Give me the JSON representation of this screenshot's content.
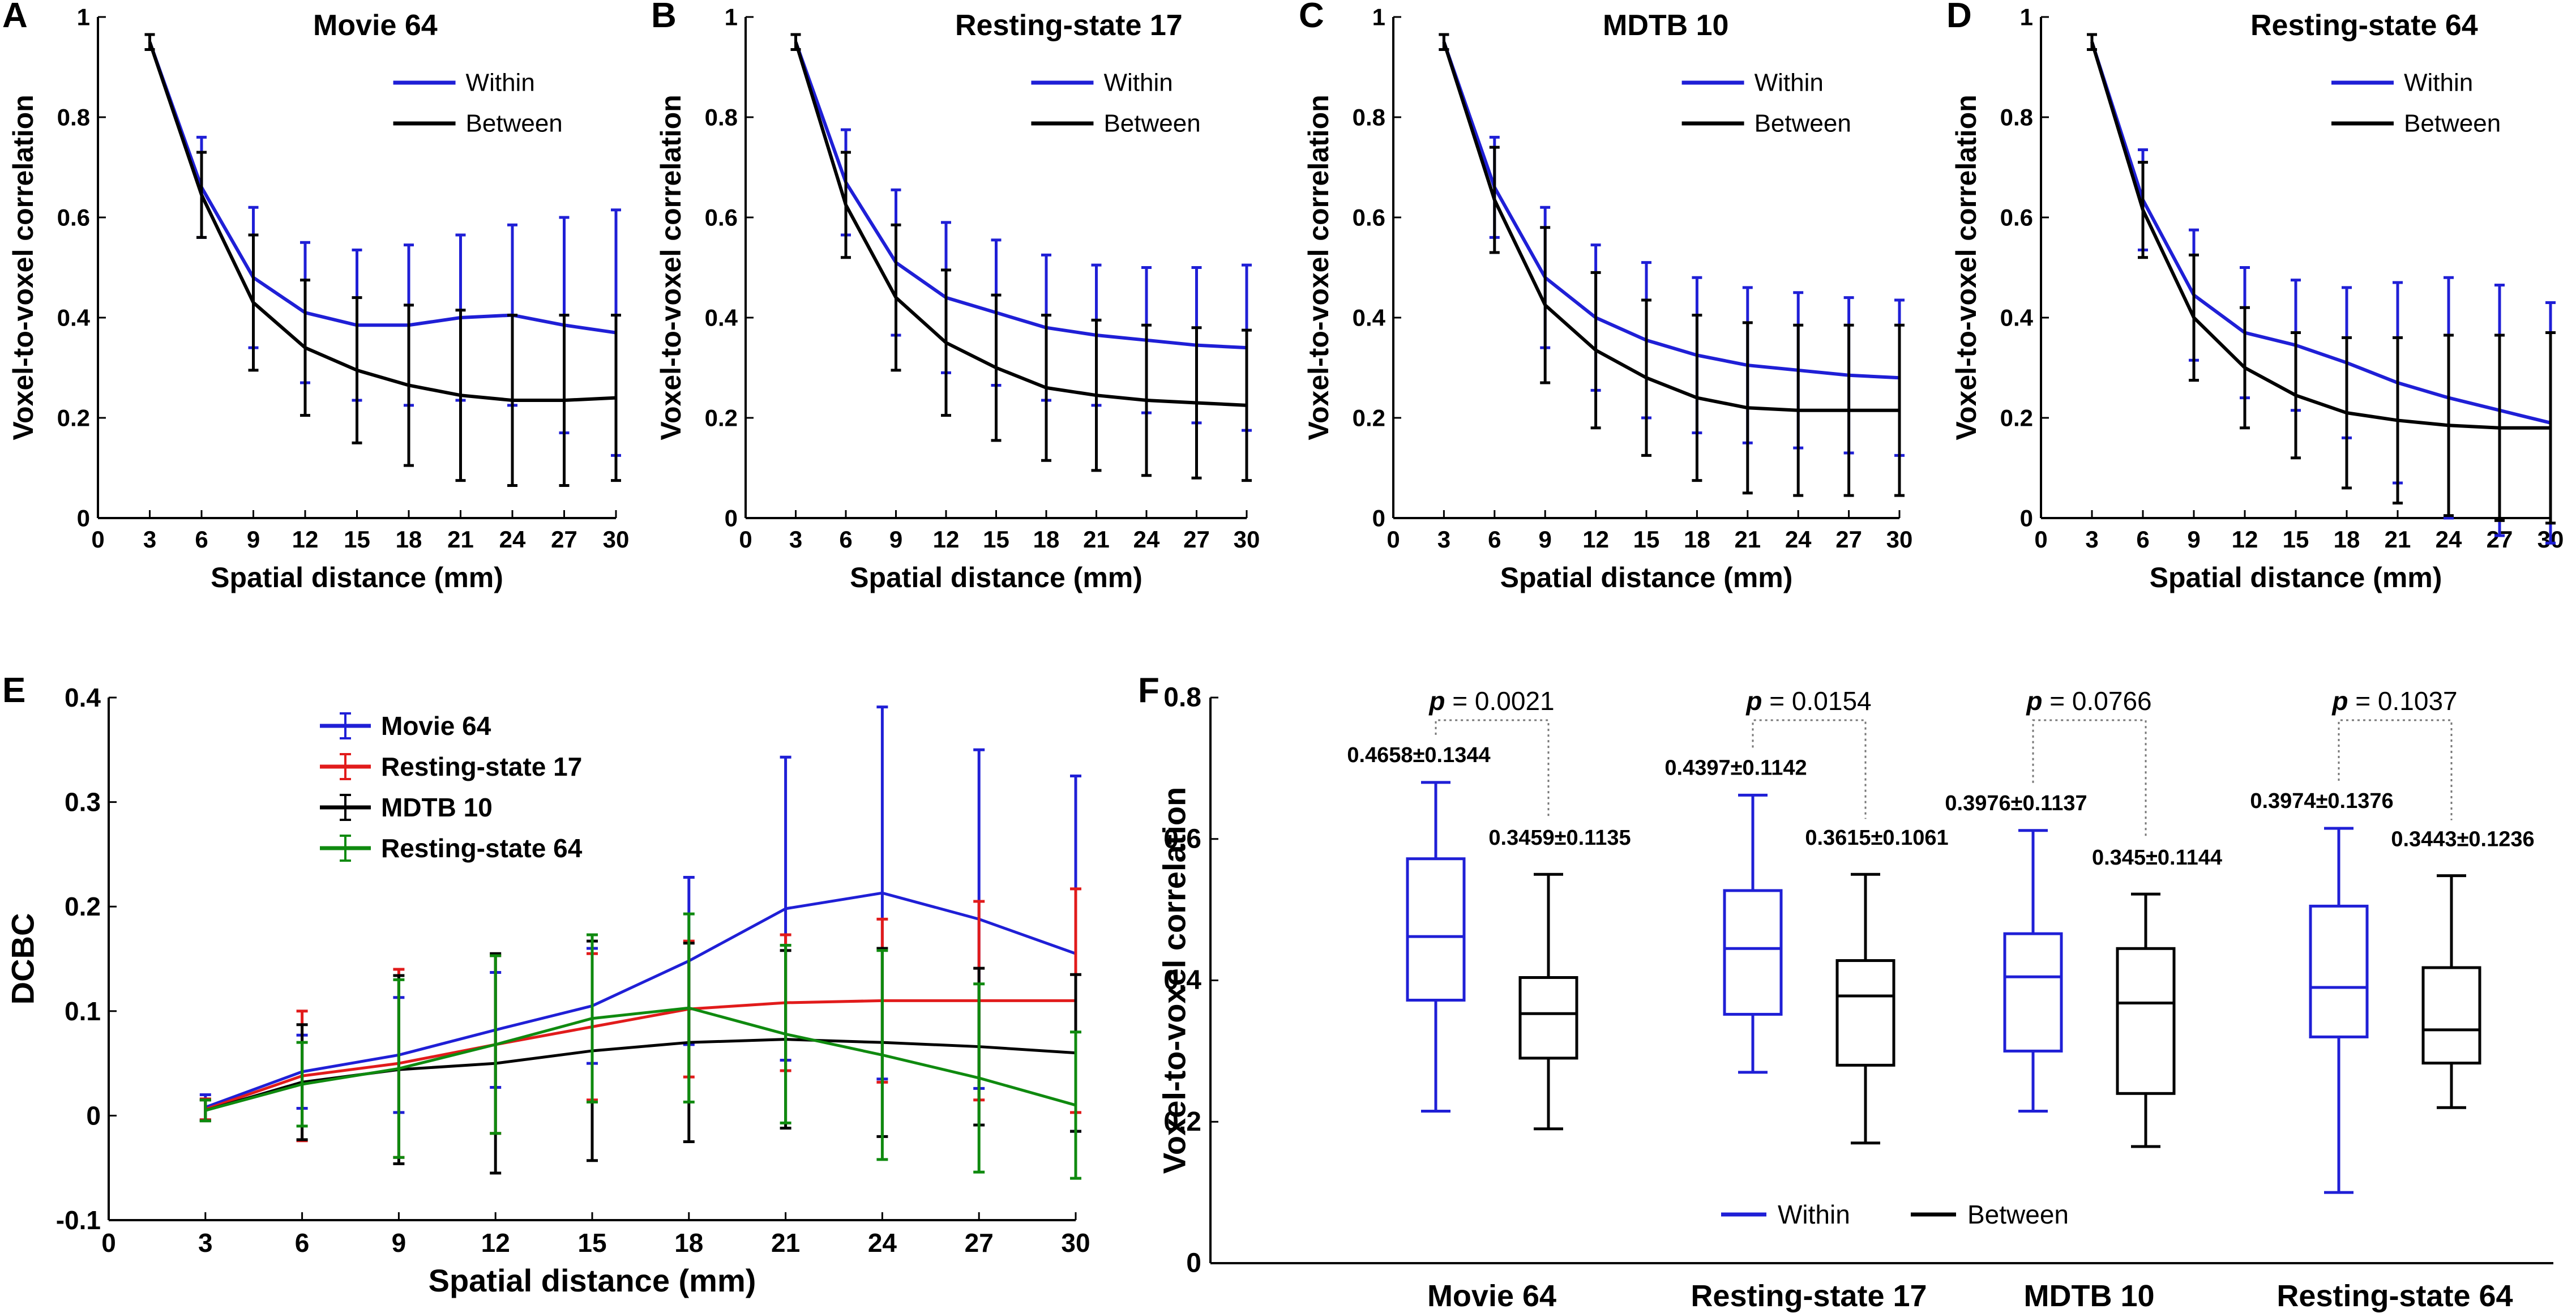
{
  "chart_data": [
    {
      "panel": "A",
      "type": "line",
      "title": "Movie 64",
      "xlabel": "Spatial distance (mm)",
      "ylabel": "Voxel-to-voxel correlation",
      "x": [
        3,
        6,
        9,
        12,
        15,
        18,
        21,
        24,
        27,
        30
      ],
      "xlim": [
        0,
        30
      ],
      "xticks": [
        "0",
        "3",
        "6",
        "9",
        "12",
        "15",
        "18",
        "21",
        "24",
        "27",
        "30"
      ],
      "ylim": [
        0,
        1
      ],
      "yticks": [
        "0",
        "0.2",
        "0.4",
        "0.6",
        "0.8",
        "1"
      ],
      "legend": [
        "Within",
        "Between"
      ],
      "legend_position": "top-right",
      "series": [
        {
          "name": "Within",
          "color": "#1f1fd6",
          "values": [
            0.95,
            0.66,
            0.48,
            0.41,
            0.385,
            0.385,
            0.4,
            0.405,
            0.385,
            0.37
          ],
          "err": [
            0.015,
            0.1,
            0.14,
            0.14,
            0.15,
            0.16,
            0.165,
            0.18,
            0.215,
            0.245
          ]
        },
        {
          "name": "Between",
          "color": "#000000",
          "values": [
            0.95,
            0.645,
            0.43,
            0.34,
            0.295,
            0.265,
            0.245,
            0.235,
            0.235,
            0.24
          ],
          "err": [
            0.015,
            0.085,
            0.135,
            0.135,
            0.145,
            0.16,
            0.17,
            0.17,
            0.17,
            0.165
          ]
        }
      ]
    },
    {
      "panel": "B",
      "type": "line",
      "title": "Resting-state 17",
      "xlabel": "Spatial distance (mm)",
      "ylabel": "Voxel-to-voxel correlation",
      "x": [
        3,
        6,
        9,
        12,
        15,
        18,
        21,
        24,
        27,
        30
      ],
      "xlim": [
        0,
        30
      ],
      "xticks": [
        "0",
        "3",
        "6",
        "9",
        "12",
        "15",
        "18",
        "21",
        "24",
        "27",
        "30"
      ],
      "ylim": [
        0,
        1
      ],
      "yticks": [
        "0",
        "0.2",
        "0.4",
        "0.6",
        "0.8",
        "1"
      ],
      "legend": [
        "Within",
        "Between"
      ],
      "legend_position": "top-right",
      "series": [
        {
          "name": "Within",
          "color": "#1f1fd6",
          "values": [
            0.95,
            0.67,
            0.51,
            0.44,
            0.41,
            0.38,
            0.365,
            0.355,
            0.345,
            0.34
          ],
          "err": [
            0.015,
            0.105,
            0.145,
            0.15,
            0.145,
            0.145,
            0.14,
            0.145,
            0.155,
            0.165
          ]
        },
        {
          "name": "Between",
          "color": "#000000",
          "values": [
            0.95,
            0.625,
            0.44,
            0.35,
            0.3,
            0.26,
            0.245,
            0.235,
            0.23,
            0.225
          ],
          "err": [
            0.015,
            0.105,
            0.145,
            0.145,
            0.145,
            0.145,
            0.15,
            0.15,
            0.15,
            0.15
          ]
        }
      ]
    },
    {
      "panel": "C",
      "type": "line",
      "title": "MDTB 10",
      "xlabel": "Spatial distance (mm)",
      "ylabel": "Voxel-to-voxel correlation",
      "x": [
        3,
        6,
        9,
        12,
        15,
        18,
        21,
        24,
        27,
        30
      ],
      "xlim": [
        0,
        30
      ],
      "xticks": [
        "0",
        "3",
        "6",
        "9",
        "12",
        "15",
        "18",
        "21",
        "24",
        "27",
        "30"
      ],
      "ylim": [
        0,
        1
      ],
      "yticks": [
        "0",
        "0.2",
        "0.4",
        "0.6",
        "0.8",
        "1"
      ],
      "legend": [
        "Within",
        "Between"
      ],
      "legend_position": "top-right",
      "series": [
        {
          "name": "Within",
          "color": "#1f1fd6",
          "values": [
            0.95,
            0.66,
            0.48,
            0.4,
            0.355,
            0.325,
            0.305,
            0.295,
            0.285,
            0.28
          ],
          "err": [
            0.015,
            0.1,
            0.14,
            0.145,
            0.155,
            0.155,
            0.155,
            0.155,
            0.155,
            0.155
          ]
        },
        {
          "name": "Between",
          "color": "#000000",
          "values": [
            0.95,
            0.635,
            0.425,
            0.335,
            0.28,
            0.24,
            0.22,
            0.215,
            0.215,
            0.215
          ],
          "err": [
            0.015,
            0.105,
            0.155,
            0.155,
            0.155,
            0.165,
            0.17,
            0.17,
            0.17,
            0.17
          ]
        }
      ]
    },
    {
      "panel": "D",
      "type": "line",
      "title": "Resting-state 64",
      "xlabel": "Spatial distance (mm)",
      "ylabel": "Voxel-to-voxel correlation",
      "x": [
        3,
        6,
        9,
        12,
        15,
        18,
        21,
        24,
        27,
        30
      ],
      "xlim": [
        0,
        30
      ],
      "xticks": [
        "0",
        "3",
        "6",
        "9",
        "12",
        "15",
        "18",
        "21",
        "24",
        "27",
        "30"
      ],
      "ylim": [
        0,
        1
      ],
      "yticks": [
        "0",
        "0.2",
        "0.4",
        "0.6",
        "0.8",
        "1"
      ],
      "legend": [
        "Within",
        "Between"
      ],
      "legend_position": "top-right",
      "series": [
        {
          "name": "Within",
          "color": "#1f1fd6",
          "values": [
            0.95,
            0.635,
            0.445,
            0.37,
            0.345,
            0.31,
            0.27,
            0.24,
            0.215,
            0.19
          ],
          "err": [
            0.015,
            0.1,
            0.13,
            0.13,
            0.13,
            0.15,
            0.2,
            0.24,
            0.25,
            0.24
          ]
        },
        {
          "name": "Between",
          "color": "#000000",
          "values": [
            0.95,
            0.615,
            0.4,
            0.3,
            0.245,
            0.21,
            0.195,
            0.185,
            0.18,
            0.18
          ],
          "err": [
            0.015,
            0.095,
            0.125,
            0.12,
            0.125,
            0.15,
            0.165,
            0.18,
            0.185,
            0.19
          ]
        }
      ]
    },
    {
      "panel": "E",
      "type": "line",
      "title": "",
      "xlabel": "Spatial distance (mm)",
      "ylabel": "DCBC",
      "x": [
        3,
        6,
        9,
        12,
        15,
        18,
        21,
        24,
        27,
        30
      ],
      "xlim": [
        0,
        30
      ],
      "xticks": [
        "0",
        "3",
        "6",
        "9",
        "12",
        "15",
        "18",
        "21",
        "24",
        "27",
        "30"
      ],
      "ylim": [
        -0.1,
        0.4
      ],
      "yticks": [
        "-0.1",
        "0",
        "0.1",
        "0.2",
        "0.3",
        "0.4"
      ],
      "legend": [
        "Movie 64",
        "Resting-state 17",
        "MDTB 10",
        "Resting-state 64"
      ],
      "legend_position": "top-center",
      "series": [
        {
          "name": "Movie 64",
          "color": "#1f1fd6",
          "values": [
            0.008,
            0.042,
            0.058,
            0.082,
            0.105,
            0.148,
            0.198,
            0.213,
            0.188,
            0.155
          ],
          "err": [
            0.012,
            0.035,
            0.055,
            0.055,
            0.055,
            0.08,
            0.145,
            0.178,
            0.162,
            0.17
          ]
        },
        {
          "name": "Resting-state 17",
          "color": "#e11b1b",
          "values": [
            0.006,
            0.038,
            0.05,
            0.068,
            0.085,
            0.102,
            0.108,
            0.11,
            0.11,
            0.11
          ],
          "err": [
            0.01,
            0.062,
            0.09,
            0.085,
            0.07,
            0.065,
            0.065,
            0.078,
            0.095,
            0.107
          ]
        },
        {
          "name": "MDTB 10",
          "color": "#000000",
          "values": [
            0.005,
            0.032,
            0.044,
            0.05,
            0.062,
            0.07,
            0.073,
            0.07,
            0.066,
            0.06
          ],
          "err": [
            0.01,
            0.055,
            0.09,
            0.105,
            0.105,
            0.095,
            0.085,
            0.09,
            0.075,
            0.075
          ]
        },
        {
          "name": "Resting-state 64",
          "color": "#0f8a0f",
          "values": [
            0.005,
            0.03,
            0.045,
            0.068,
            0.093,
            0.103,
            0.078,
            0.058,
            0.036,
            0.01
          ],
          "err": [
            0.01,
            0.04,
            0.085,
            0.085,
            0.08,
            0.09,
            0.085,
            0.1,
            0.09,
            0.07
          ]
        }
      ]
    },
    {
      "panel": "F",
      "type": "box",
      "title": "",
      "xlabel": "",
      "ylabel": "Voxel-to-voxel correlation",
      "ylim": [
        0,
        0.8
      ],
      "yticks": [
        "0",
        "0.2",
        "0.4",
        "0.6",
        "0.8"
      ],
      "legend": [
        "Within",
        "Between"
      ],
      "legend_position": "bottom-center",
      "groups": [
        {
          "name": "Movie 64",
          "p_label": "p",
          "p_value": " = 0.0021",
          "within": {
            "whisker_low": 0.215,
            "q1": 0.372,
            "median": 0.462,
            "q3": 0.572,
            "whisker_high": 0.68,
            "label": "0.4658±0.1344"
          },
          "between": {
            "whisker_low": 0.19,
            "q1": 0.29,
            "median": 0.353,
            "q3": 0.404,
            "whisker_high": 0.55,
            "label": "0.3459±0.1135"
          }
        },
        {
          "name": "Resting-state 17",
          "p_label": "p",
          "p_value": " = 0.0154",
          "within": {
            "whisker_low": 0.27,
            "q1": 0.352,
            "median": 0.445,
            "q3": 0.527,
            "whisker_high": 0.662,
            "label": "0.4397±0.1142"
          },
          "between": {
            "whisker_low": 0.17,
            "q1": 0.28,
            "median": 0.378,
            "q3": 0.428,
            "whisker_high": 0.55,
            "label": "0.3615±0.1061"
          }
        },
        {
          "name": "MDTB 10",
          "p_label": "p",
          "p_value": " = 0.0766",
          "within": {
            "whisker_low": 0.215,
            "q1": 0.3,
            "median": 0.405,
            "q3": 0.466,
            "whisker_high": 0.612,
            "label": "0.3976±0.1137"
          },
          "between": {
            "whisker_low": 0.165,
            "q1": 0.24,
            "median": 0.368,
            "q3": 0.445,
            "whisker_high": 0.522,
            "label": "0.345±0.1144"
          }
        },
        {
          "name": "Resting-state 64",
          "p_label": "p",
          "p_value": " = 0.1037",
          "within": {
            "whisker_low": 0.1,
            "q1": 0.32,
            "median": 0.39,
            "q3": 0.505,
            "whisker_high": 0.615,
            "label": "0.3974±0.1376"
          },
          "between": {
            "whisker_low": 0.22,
            "q1": 0.283,
            "median": 0.33,
            "q3": 0.418,
            "whisker_high": 0.548,
            "label": "0.3443±0.1236"
          }
        }
      ],
      "colors": {
        "within": "#1f1fd6",
        "between": "#000000"
      }
    }
  ]
}
